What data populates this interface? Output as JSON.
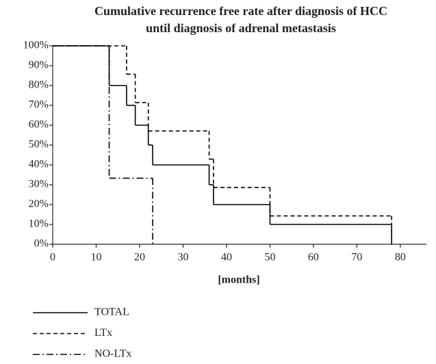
{
  "chart_data": {
    "type": "step",
    "title": [
      "Cumulative recurrence free rate after diagnosis of HCC",
      "until diagnosis of adrenal metastasis"
    ],
    "x_label": "[months]",
    "xlim": [
      0,
      86
    ],
    "xticks": [
      0,
      10,
      20,
      30,
      40,
      50,
      60,
      70,
      80
    ],
    "ylim": [
      0,
      100
    ],
    "yticks": [
      {
        "value": 0,
        "label": "0%"
      },
      {
        "value": 10,
        "label": "10%"
      },
      {
        "value": 20,
        "label": "20%"
      },
      {
        "value": 30,
        "label": "30%"
      },
      {
        "value": 40,
        "label": "40%"
      },
      {
        "value": 50,
        "label": "50%"
      },
      {
        "value": 60,
        "label": "60%"
      },
      {
        "value": 70,
        "label": "70%"
      },
      {
        "value": 80,
        "label": "80%"
      },
      {
        "value": 90,
        "label": "90%"
      },
      {
        "value": 100,
        "label": "100%"
      }
    ],
    "series": [
      {
        "name": "TOTAL",
        "color": "#000000",
        "dash": "solid",
        "x": [
          0,
          13,
          17,
          19,
          22,
          23,
          36,
          37,
          50,
          78
        ],
        "values": [
          100,
          80,
          70,
          60,
          50,
          40,
          30,
          20,
          10,
          0
        ]
      },
      {
        "name": "LTx",
        "color": "#000000",
        "dash": "dash",
        "x": [
          0,
          17,
          19,
          22,
          36,
          37,
          50,
          78
        ],
        "values": [
          100,
          85.7,
          71.4,
          57.1,
          42.9,
          28.6,
          14.3,
          0
        ]
      },
      {
        "name": "NO-LTx",
        "color": "#000000",
        "dash": "dashdot",
        "x": [
          0,
          13,
          23
        ],
        "values": [
          100,
          33.3,
          0
        ]
      }
    ]
  }
}
